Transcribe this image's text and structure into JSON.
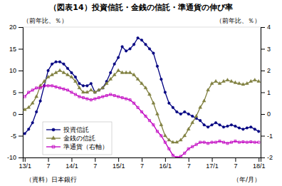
{
  "chart_data": {
    "type": "line",
    "title": "（図表14）投資信託・金銭の信託・準通貨の伸び率",
    "y_label": "（前年比、％）",
    "y2_label": "（前年比、％）",
    "x_label": "（年/月）",
    "annotations": [
      "（資料）日本銀行"
    ],
    "categories": [
      "13/1",
      null,
      null,
      null,
      null,
      null,
      "7",
      null,
      null,
      null,
      null,
      null,
      "14/1",
      null,
      null,
      null,
      null,
      null,
      "7",
      null,
      null,
      null,
      null,
      null,
      "15/1",
      null,
      null,
      null,
      null,
      null,
      "7",
      null,
      null,
      null,
      null,
      null,
      "16/1",
      null,
      null,
      null,
      null,
      null,
      "7",
      null,
      null,
      null,
      null,
      null,
      "17/1",
      null,
      null,
      null,
      null,
      null,
      "7",
      null,
      null,
      null,
      null,
      null,
      "18/1"
    ],
    "ylim": [
      -10,
      20
    ],
    "yticks": [
      -10,
      -5,
      0,
      5,
      10,
      15,
      20
    ],
    "y2lim": [
      -2,
      4
    ],
    "y2ticks": [
      -2,
      -1,
      0,
      1,
      2,
      3,
      4
    ],
    "grid": false,
    "legend": "lower left",
    "series": [
      {
        "name": "投資信託",
        "color": "#000080",
        "marker": "circle",
        "values": [
          -4.5,
          -3.5,
          -2.0,
          0.5,
          3.0,
          6.5,
          10.0,
          11.5,
          12.0,
          12.0,
          11.5,
          10.5,
          9.5,
          8.5,
          7.0,
          6.5,
          6.5,
          7.0,
          5.0,
          5.5,
          6.0,
          7.5,
          9.5,
          11.5,
          13.0,
          15.5,
          14.5,
          15.0,
          16.0,
          17.5,
          17.0,
          16.0,
          15.0,
          14.0,
          11.0,
          8.0,
          5.0,
          2.5,
          1.5,
          0.5,
          0.0,
          0.5,
          0.0,
          -0.5,
          -1.0,
          -1.5,
          -2.5,
          -3.0,
          -2.5,
          -2.0,
          -2.5,
          -3.0,
          -2.8,
          -2.5,
          -2.8,
          -3.2,
          -3.5,
          -3.2,
          -3.0,
          -3.5,
          -4.0
        ]
      },
      {
        "name": "金銭の信託",
        "color": "#808040",
        "marker": "triangle",
        "values": [
          1.0,
          1.5,
          2.5,
          4.0,
          6.5,
          7.5,
          8.5,
          9.0,
          9.5,
          10.0,
          9.5,
          9.0,
          8.5,
          7.5,
          6.0,
          5.0,
          5.0,
          5.5,
          5.0,
          5.5,
          6.0,
          7.0,
          8.0,
          9.0,
          10.0,
          9.5,
          9.5,
          9.5,
          9.0,
          8.0,
          7.0,
          6.0,
          4.5,
          2.5,
          0.0,
          -2.5,
          -5.0,
          -6.0,
          -6.5,
          -6.5,
          -6.0,
          -5.0,
          -3.5,
          -2.0,
          -0.5,
          1.5,
          3.0,
          5.5,
          7.0,
          7.5,
          7.0,
          7.5,
          7.8,
          7.5,
          7.2,
          7.0,
          6.8,
          7.0,
          7.5,
          7.8,
          7.5
        ]
      },
      {
        "name": "準通貨（右軸）",
        "color": "#C000C0",
        "marker": "square-open",
        "axis": "y2",
        "values": [
          0.8,
          1.0,
          1.1,
          1.2,
          1.2,
          1.3,
          1.3,
          1.3,
          1.25,
          1.2,
          1.15,
          1.1,
          1.0,
          0.9,
          0.8,
          0.75,
          0.7,
          0.65,
          0.7,
          0.75,
          0.8,
          0.85,
          0.9,
          0.85,
          0.8,
          0.75,
          0.7,
          0.65,
          0.5,
          0.3,
          0.1,
          -0.1,
          -0.3,
          -0.5,
          -0.8,
          -1.0,
          -1.3,
          -1.6,
          -1.9,
          -2.0,
          -1.95,
          -1.8,
          -1.6,
          -1.5,
          -1.4,
          -1.3,
          -1.3,
          -1.35,
          -1.3,
          -1.3,
          -1.25,
          -1.3,
          -1.35,
          -1.3,
          -1.25,
          -1.3,
          -1.28,
          -1.3,
          -1.28,
          -1.3,
          -1.3
        ]
      }
    ]
  }
}
